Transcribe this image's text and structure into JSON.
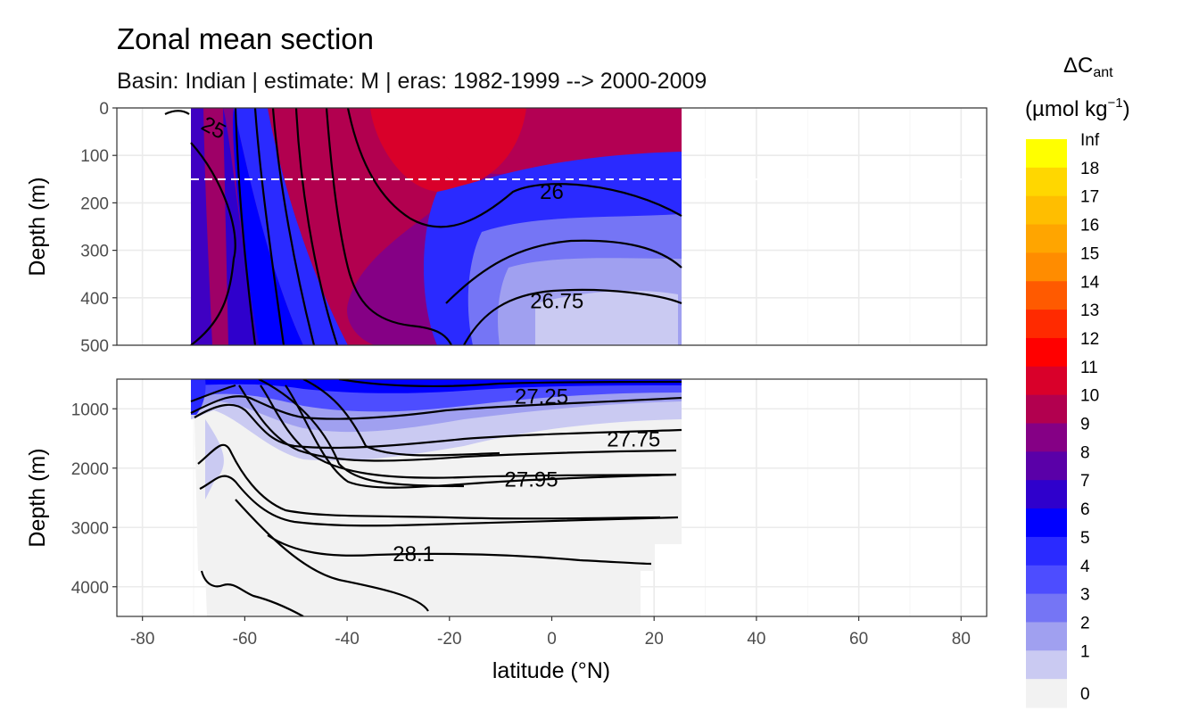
{
  "chart_data": {
    "type": "heatmap",
    "title": "Zonal mean section",
    "subtitle": "Basin: Indian | estimate: M  | eras: 1982-1999 --> 2000-2009",
    "xlabel": "latitude (°N)",
    "ylabel": "Depth (m)",
    "xlim": [
      -85,
      85
    ],
    "x_ticks": [
      -80,
      -60,
      -40,
      -20,
      0,
      20,
      40,
      60,
      80
    ],
    "data_lat_range": [
      -70,
      25
    ],
    "panels": [
      {
        "name": "upper",
        "ylim": [
          0,
          500
        ],
        "y_ticks": [
          0,
          100,
          200,
          300,
          400,
          500
        ]
      },
      {
        "name": "lower",
        "ylim": [
          500,
          4500
        ],
        "y_ticks": [
          1000,
          2000,
          3000,
          4000
        ]
      }
    ],
    "reference_line_depth": 150,
    "isopycnal_labels": [
      {
        "text": "25",
        "lat": -66,
        "depth": 40
      },
      {
        "text": "26",
        "lat": 0,
        "depth": 175
      },
      {
        "text": "26.75",
        "lat": 1,
        "depth": 405
      },
      {
        "text": "27.25",
        "lat": -2,
        "depth": 780
      },
      {
        "text": "27.75",
        "lat": 16,
        "depth": 1500
      },
      {
        "text": "27.95",
        "lat": -4,
        "depth": 2180
      },
      {
        "text": "28.1",
        "lat": -27,
        "depth": 3430
      }
    ],
    "legend": {
      "title": "ΔC",
      "title_sub": "ant",
      "units": "(µmol kg",
      "units_sup": "−1",
      "units_close": ")",
      "breaks": [
        "Inf",
        "18",
        "17",
        "16",
        "15",
        "14",
        "13",
        "12",
        "11",
        "10",
        "9",
        "8",
        "7",
        "6",
        "5",
        "4",
        "3",
        "2",
        "1",
        "0"
      ],
      "colors": [
        "#ffff00",
        "#ffd700",
        "#ffbe00",
        "#ffa500",
        "#ff8c00",
        "#ff5a00",
        "#ff2a00",
        "#ff0000",
        "#d9002a",
        "#b2004f",
        "#850085",
        "#5a00a8",
        "#2f00cc",
        "#0000ff",
        "#2a2aff",
        "#4d4dff",
        "#7575f5",
        "#a0a0f0",
        "#cacaf2",
        "#f2f2f2"
      ]
    }
  }
}
